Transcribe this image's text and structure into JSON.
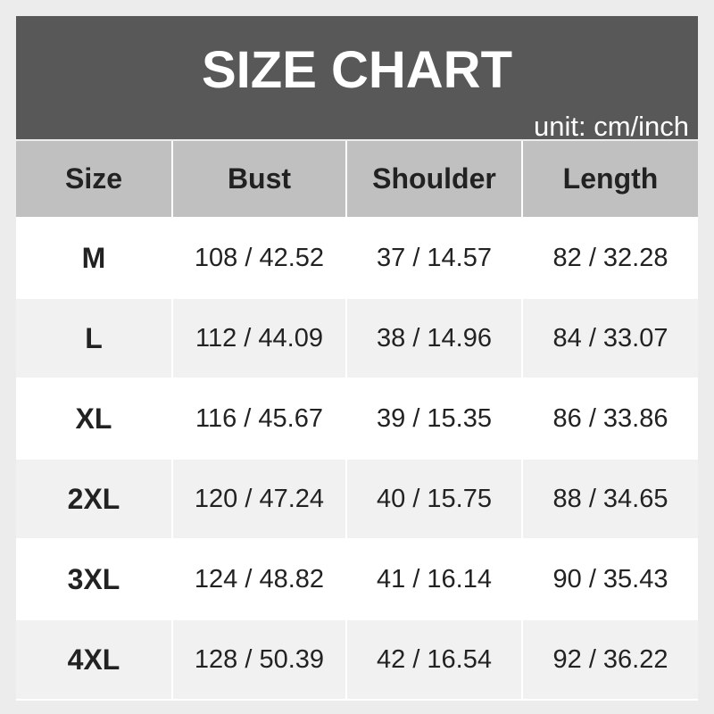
{
  "title": "SIZE CHART",
  "unit": "unit: cm/inch",
  "columns": [
    "Size",
    "Bust",
    "Shoulder",
    "Length"
  ],
  "rows": [
    [
      "M",
      "108 / 42.52",
      "37 / 14.57",
      "82 / 32.28"
    ],
    [
      "L",
      "112 / 44.09",
      "38 / 14.96",
      "84 / 33.07"
    ],
    [
      "XL",
      "116 / 45.67",
      "39 / 15.35",
      "86 / 33.86"
    ],
    [
      "2XL",
      "120 / 47.24",
      "40 / 15.75",
      "88 / 34.65"
    ],
    [
      "3XL",
      "124 / 48.82",
      "41 / 16.14",
      "90 / 35.43"
    ],
    [
      "4XL",
      "128 / 50.39",
      "42 / 16.54",
      "92 / 36.22"
    ]
  ],
  "colors": {
    "title_band": "#585858",
    "header": "#c0c0c0",
    "row_alt": "#f1f1f1"
  }
}
